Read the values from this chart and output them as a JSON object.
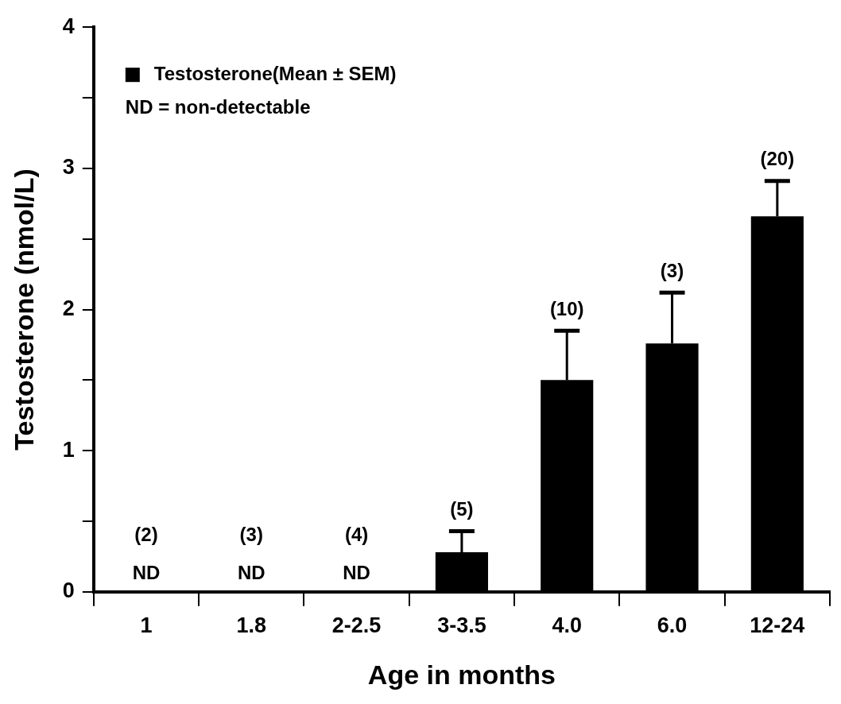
{
  "chart_data": {
    "type": "bar",
    "categories": [
      "1",
      "1.8",
      "2-2.5",
      "3-3.5",
      "4.0",
      "6.0",
      "12-24"
    ],
    "series": [
      {
        "name": "Testosterone(Mean ± SEM)",
        "color": "#000000",
        "values": [
          null,
          null,
          null,
          0.28,
          1.5,
          1.76,
          2.66
        ],
        "errors": [
          null,
          null,
          null,
          0.15,
          0.35,
          0.36,
          0.25
        ],
        "value_labels": [
          "ND",
          "ND",
          "ND",
          null,
          null,
          null,
          null
        ]
      }
    ],
    "xlabel": "Age in months",
    "ylabel": "Testosterone (nmol/L)",
    "ylim": [
      0,
      4
    ],
    "yticks": [
      0,
      {
        "value": 0.5,
        "label": null
      },
      1,
      {
        "value": 1.5,
        "label": null
      },
      2,
      {
        "value": 2.5,
        "label": null
      },
      3,
      {
        "value": 3.5,
        "label": null
      },
      4
    ],
    "annotations": [
      "ND = non-detectable",
      "(2)",
      "(3)",
      "(4)",
      "(5)",
      "(10)",
      "(3)",
      "(20)"
    ],
    "legend": "top left",
    "grid": false
  }
}
